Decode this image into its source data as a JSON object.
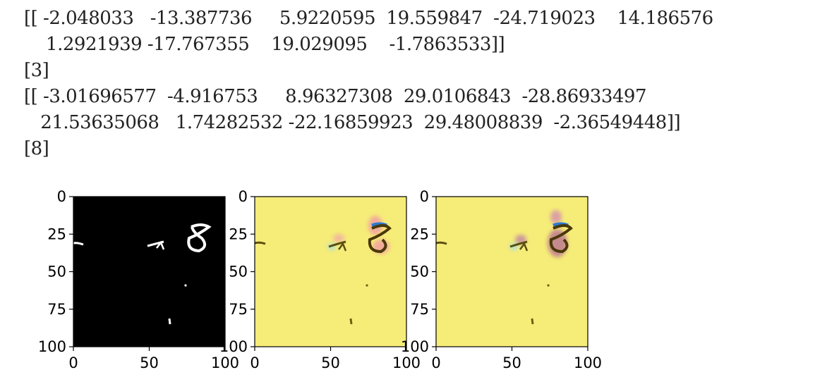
{
  "output": {
    "array1_line1": "[[ -2.048033   -13.387736     5.9220595  19.559847  -24.719023    14.186576",
    "array1_line2": "    1.2921939 -17.767355    19.029095    -1.7863533]]",
    "pred1": "[3]",
    "array2_line1": "[[ -3.01696577  -4.916753     8.96327308  29.0106843  -28.86933497",
    "array2_line2": "   21.53635068   1.74282532 -22.16859923  29.48008839  -2.36549448]]",
    "pred2": "[8]"
  },
  "figure": {
    "axis_ticks": [
      "0",
      "25",
      "50",
      "75",
      "100"
    ],
    "panels": [
      {
        "cmap": "gray",
        "background": "#000000",
        "strokes": "#ffffff"
      },
      {
        "cmap": "heatmap-overlay",
        "background": "#f6ec78",
        "strokes": "#5a4a10"
      },
      {
        "cmap": "heatmap-overlay",
        "background": "#f6ec78",
        "strokes": "#5a4a10"
      }
    ]
  }
}
